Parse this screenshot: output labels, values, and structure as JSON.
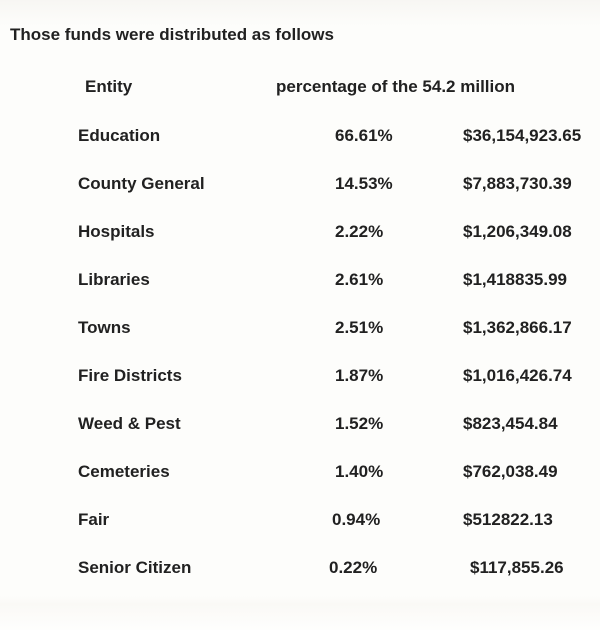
{
  "title": "Those funds were distributed as follows",
  "table": {
    "headers": {
      "entity": "Entity",
      "percentage": "percentage of the 54.2 million"
    },
    "rows": [
      {
        "entity": "Education",
        "percent": "66.61%",
        "amount": "$36,154,923.65"
      },
      {
        "entity": "County General",
        "percent": "14.53%",
        "amount": "$7,883,730.39"
      },
      {
        "entity": "Hospitals",
        "percent": "2.22%",
        "amount": "$1,206,349.08"
      },
      {
        "entity": "Libraries",
        "percent": "2.61%",
        "amount": "$1,418835.99"
      },
      {
        "entity": "Towns",
        "percent": "2.51%",
        "amount": "$1,362,866.17"
      },
      {
        "entity": "Fire Districts",
        "percent": "1.87%",
        "amount": "$1,016,426.74"
      },
      {
        "entity": "Weed & Pest",
        "percent": "1.52%",
        "amount": "$823,454.84"
      },
      {
        "entity": "Cemeteries",
        "percent": "1.40%",
        "amount": "$762,038.49"
      },
      {
        "entity": "Fair",
        "percent": "0.94%",
        "amount": "$512822.13"
      },
      {
        "entity": "Senior Citizen",
        "percent": "0.22%",
        "amount": "$117,855.26"
      }
    ]
  },
  "colors": {
    "text": "#212121",
    "background": "#fdfdfb"
  }
}
